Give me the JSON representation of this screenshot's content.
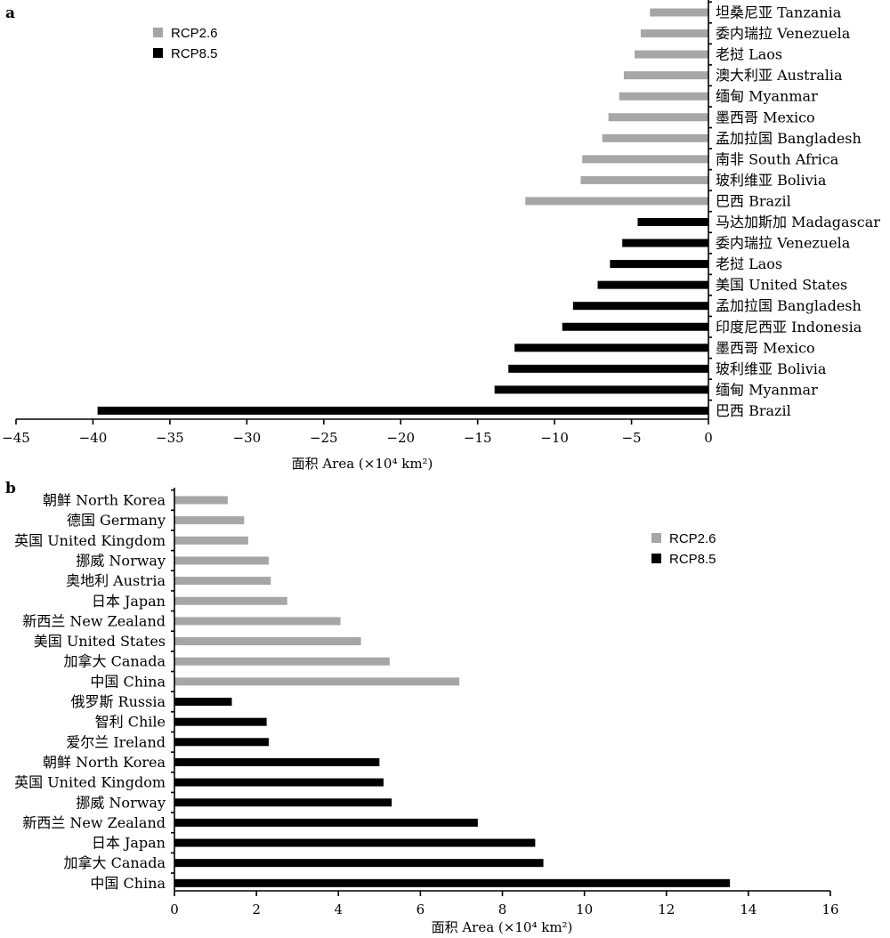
{
  "chart_data": [
    {
      "type": "bar",
      "orientation": "horizontal",
      "panel_label": "a",
      "xlabel": "面积 Area (×10⁴ km²)",
      "xlim": [
        -45,
        0
      ],
      "xticks": [
        -45,
        -40,
        -35,
        -30,
        -25,
        -20,
        -15,
        -10,
        -5,
        0
      ],
      "xtick_labels": [
        "−45",
        "−40",
        "−35",
        "−30",
        "−25",
        "−20",
        "−15",
        "−10",
        "−5",
        "0"
      ],
      "legend": {
        "position": "top-left",
        "entries": [
          "RCP2.6",
          "RCP8.5"
        ]
      },
      "series_colors": {
        "RCP2.6": "#a6a6a6",
        "RCP8.5": "#000000"
      },
      "bars": [
        {
          "label": "坦桑尼亚 Tanzania",
          "series": "RCP2.6",
          "value": -3.8
        },
        {
          "label": "委内瑞拉 Venezuela",
          "series": "RCP2.6",
          "value": -4.4
        },
        {
          "label": "老挝  Laos",
          "series": "RCP2.6",
          "value": -4.8
        },
        {
          "label": "澳大利亚 Australia",
          "series": "RCP2.6",
          "value": -5.5
        },
        {
          "label": "缅甸 Myanmar",
          "series": "RCP2.6",
          "value": -5.8
        },
        {
          "label": "墨西哥 Mexico",
          "series": "RCP2.6",
          "value": -6.5
        },
        {
          "label": "孟加拉国 Bangladesh",
          "series": "RCP2.6",
          "value": -6.9
        },
        {
          "label": "南非 South Africa",
          "series": "RCP2.6",
          "value": -8.2
        },
        {
          "label": "玻利维亚 Bolivia",
          "series": "RCP2.6",
          "value": -8.3
        },
        {
          "label": "巴西 Brazil",
          "series": "RCP2.6",
          "value": -11.9
        },
        {
          "label": "马达加斯加 Madagascar",
          "series": "RCP8.5",
          "value": -4.6
        },
        {
          "label": "委内瑞拉 Venezuela",
          "series": "RCP8.5",
          "value": -5.6
        },
        {
          "label": "老挝 Laos",
          "series": "RCP8.5",
          "value": -6.4
        },
        {
          "label": "美国 United States",
          "series": "RCP8.5",
          "value": -7.2
        },
        {
          "label": "孟加拉国 Bangladesh",
          "series": "RCP8.5",
          "value": -8.8
        },
        {
          "label": "印度尼西亚 Indonesia",
          "series": "RCP8.5",
          "value": -9.5
        },
        {
          "label": "墨西哥 Mexico",
          "series": "RCP8.5",
          "value": -12.6
        },
        {
          "label": "玻利维亚 Bolivia",
          "series": "RCP8.5",
          "value": -13.0
        },
        {
          "label": "缅甸 Myanmar",
          "series": "RCP8.5",
          "value": -13.9
        },
        {
          "label": "巴西 Brazil",
          "series": "RCP8.5",
          "value": -39.7
        }
      ]
    },
    {
      "type": "bar",
      "orientation": "horizontal",
      "panel_label": "b",
      "xlabel": "面积 Area (×10⁴ km²)",
      "xlim": [
        0,
        16
      ],
      "xticks": [
        0,
        2,
        4,
        6,
        8,
        10,
        12,
        14,
        16
      ],
      "xtick_labels": [
        "0",
        "2",
        "4",
        "6",
        "8",
        "10",
        "12",
        "14",
        "16"
      ],
      "legend": {
        "position": "top-right",
        "entries": [
          "RCP2.6",
          "RCP8.5"
        ]
      },
      "series_colors": {
        "RCP2.6": "#a6a6a6",
        "RCP8.5": "#000000"
      },
      "bars": [
        {
          "label": "朝鲜 North Korea",
          "series": "RCP2.6",
          "value": 1.3
        },
        {
          "label": "德国 Germany",
          "series": "RCP2.6",
          "value": 1.7
        },
        {
          "label": "英国 United Kingdom",
          "series": "RCP2.6",
          "value": 1.8
        },
        {
          "label": "挪威 Norway",
          "series": "RCP2.6",
          "value": 2.3
        },
        {
          "label": "奥地利 Austria",
          "series": "RCP2.6",
          "value": 2.35
        },
        {
          "label": "日本 Japan",
          "series": "RCP2.6",
          "value": 2.75
        },
        {
          "label": "新西兰 New Zealand",
          "series": "RCP2.6",
          "value": 4.05
        },
        {
          "label": "美国 United States",
          "series": "RCP2.6",
          "value": 4.55
        },
        {
          "label": "加拿大 Canada",
          "series": "RCP2.6",
          "value": 5.25
        },
        {
          "label": "中国 China",
          "series": "RCP2.6",
          "value": 6.95
        },
        {
          "label": "俄罗斯 Russia",
          "series": "RCP8.5",
          "value": 1.4
        },
        {
          "label": "智利 Chile",
          "series": "RCP8.5",
          "value": 2.25
        },
        {
          "label": "爱尔兰 Ireland",
          "series": "RCP8.5",
          "value": 2.3
        },
        {
          "label": "朝鲜 North Korea",
          "series": "RCP8.5",
          "value": 5.0
        },
        {
          "label": "英国 United Kingdom",
          "series": "RCP8.5",
          "value": 5.1
        },
        {
          "label": "挪威 Norway",
          "series": "RCP8.5",
          "value": 5.3
        },
        {
          "label": "新西兰 New Zealand",
          "series": "RCP8.5",
          "value": 7.4
        },
        {
          "label": "日本 Japan",
          "series": "RCP8.5",
          "value": 8.8
        },
        {
          "label": "加拿大 Canada",
          "series": "RCP8.5",
          "value": 9.0
        },
        {
          "label": "中国 China",
          "series": "RCP8.5",
          "value": 13.55
        }
      ]
    }
  ]
}
